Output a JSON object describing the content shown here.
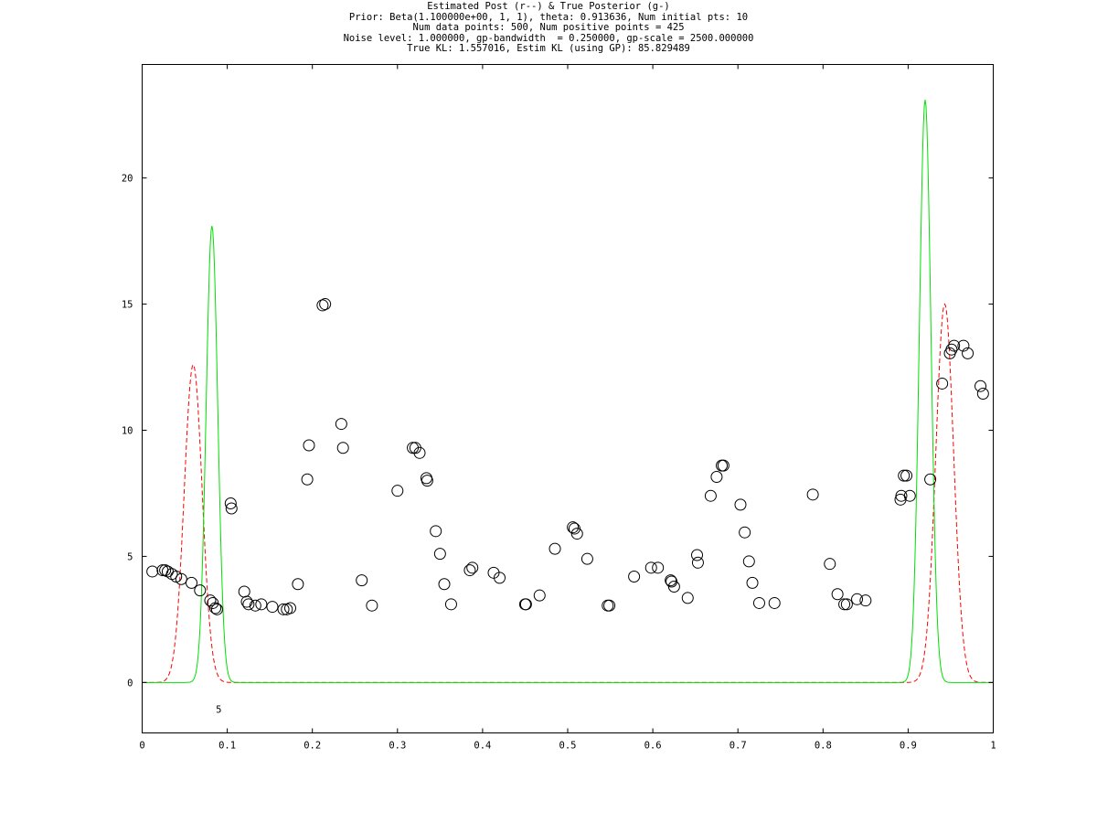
{
  "chart_data": {
    "type": "line",
    "title_lines": [
      "Estimated Post (r--) & True Posterior (g-)",
      "Prior: Beta(1.100000e+00, 1, 1), theta: 0.913636, Num initial pts: 10",
      "Num data points: 500, Num positive points = 425",
      "Noise level: 1.000000, gp-bandwidth  = 0.250000, gp-scale = 2500.000000",
      "True KL: 1.557016, Estim KL (using GP): 85.829489"
    ],
    "xlabel": "",
    "ylabel": "",
    "xlim": [
      0,
      1
    ],
    "ylim": [
      -2,
      24.5
    ],
    "x_ticks": [
      0,
      0.1,
      0.2,
      0.3,
      0.4,
      0.5,
      0.6,
      0.7,
      0.8,
      0.9,
      1
    ],
    "x_tick_labels": [
      "0",
      "0.1",
      "0.2",
      "0.3",
      "0.4",
      "0.5",
      "0.6",
      "0.7",
      "0.8",
      "0.9",
      "1"
    ],
    "y_ticks": [
      0,
      5,
      10,
      15,
      20
    ],
    "y_tick_labels": [
      "0",
      "5",
      "10",
      "15",
      "20"
    ],
    "grid": false,
    "annotations": [
      {
        "x": 0.09,
        "y": -1.05,
        "text": "5"
      }
    ],
    "series": [
      {
        "style": "dashed",
        "color": "#ff0000",
        "peaks": [
          {
            "mu": 0.06,
            "sigma": 0.0105,
            "amp": 12.6
          },
          {
            "mu": 0.943,
            "sigma": 0.0105,
            "amp": 15.0
          }
        ]
      },
      {
        "style": "solid",
        "color": "#00e000",
        "peaks": [
          {
            "mu": 0.082,
            "sigma": 0.0068,
            "amp": 18.1
          },
          {
            "mu": 0.92,
            "sigma": 0.0068,
            "amp": 23.1
          }
        ]
      }
    ],
    "scatter": {
      "marker": "circle",
      "color": "#000000",
      "points": [
        [
          0.012,
          4.4
        ],
        [
          0.024,
          4.45
        ],
        [
          0.027,
          4.45
        ],
        [
          0.03,
          4.4
        ],
        [
          0.035,
          4.3
        ],
        [
          0.04,
          4.2
        ],
        [
          0.046,
          4.1
        ],
        [
          0.058,
          3.95
        ],
        [
          0.068,
          3.65
        ],
        [
          0.08,
          3.25
        ],
        [
          0.083,
          3.15
        ],
        [
          0.086,
          2.95
        ],
        [
          0.088,
          2.9
        ],
        [
          0.104,
          7.1
        ],
        [
          0.105,
          6.9
        ],
        [
          0.12,
          3.6
        ],
        [
          0.123,
          3.2
        ],
        [
          0.125,
          3.1
        ],
        [
          0.133,
          3.05
        ],
        [
          0.14,
          3.1
        ],
        [
          0.153,
          3.0
        ],
        [
          0.166,
          2.9
        ],
        [
          0.17,
          2.9
        ],
        [
          0.174,
          2.95
        ],
        [
          0.183,
          3.9
        ],
        [
          0.194,
          8.05
        ],
        [
          0.196,
          9.4
        ],
        [
          0.212,
          14.95
        ],
        [
          0.215,
          15.0
        ],
        [
          0.234,
          10.25
        ],
        [
          0.236,
          9.3
        ],
        [
          0.258,
          4.05
        ],
        [
          0.27,
          3.05
        ],
        [
          0.3,
          7.6
        ],
        [
          0.318,
          9.3
        ],
        [
          0.321,
          9.3
        ],
        [
          0.326,
          9.1
        ],
        [
          0.334,
          8.1
        ],
        [
          0.335,
          8.0
        ],
        [
          0.345,
          6.0
        ],
        [
          0.35,
          5.1
        ],
        [
          0.355,
          3.9
        ],
        [
          0.363,
          3.1
        ],
        [
          0.385,
          4.45
        ],
        [
          0.388,
          4.55
        ],
        [
          0.413,
          4.35
        ],
        [
          0.42,
          4.15
        ],
        [
          0.45,
          3.1
        ],
        [
          0.451,
          3.1
        ],
        [
          0.467,
          3.45
        ],
        [
          0.485,
          5.3
        ],
        [
          0.506,
          6.15
        ],
        [
          0.508,
          6.1
        ],
        [
          0.511,
          5.9
        ],
        [
          0.523,
          4.9
        ],
        [
          0.547,
          3.05
        ],
        [
          0.549,
          3.05
        ],
        [
          0.578,
          4.2
        ],
        [
          0.598,
          4.55
        ],
        [
          0.606,
          4.55
        ],
        [
          0.621,
          4.05
        ],
        [
          0.622,
          4.0
        ],
        [
          0.625,
          3.8
        ],
        [
          0.641,
          3.35
        ],
        [
          0.652,
          5.05
        ],
        [
          0.653,
          4.75
        ],
        [
          0.668,
          7.4
        ],
        [
          0.675,
          8.15
        ],
        [
          0.681,
          8.6
        ],
        [
          0.683,
          8.6
        ],
        [
          0.703,
          7.05
        ],
        [
          0.708,
          5.95
        ],
        [
          0.713,
          4.8
        ],
        [
          0.717,
          3.95
        ],
        [
          0.725,
          3.15
        ],
        [
          0.743,
          3.15
        ],
        [
          0.788,
          7.45
        ],
        [
          0.808,
          4.7
        ],
        [
          0.817,
          3.5
        ],
        [
          0.825,
          3.1
        ],
        [
          0.828,
          3.1
        ],
        [
          0.84,
          3.3
        ],
        [
          0.85,
          3.25
        ],
        [
          0.891,
          7.25
        ],
        [
          0.892,
          7.4
        ],
        [
          0.895,
          8.2
        ],
        [
          0.898,
          8.2
        ],
        [
          0.902,
          7.4
        ],
        [
          0.926,
          8.05
        ],
        [
          0.94,
          11.85
        ],
        [
          0.949,
          13.05
        ],
        [
          0.951,
          13.2
        ],
        [
          0.954,
          13.35
        ],
        [
          0.965,
          13.35
        ],
        [
          0.97,
          13.05
        ],
        [
          0.985,
          11.75
        ],
        [
          0.988,
          11.45
        ]
      ]
    }
  }
}
